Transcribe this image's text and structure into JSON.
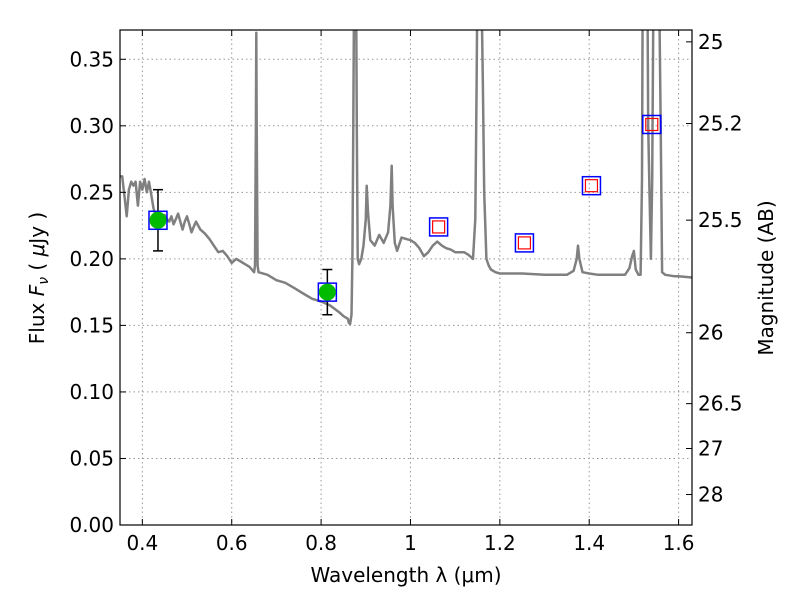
{
  "chart_data": {
    "type": "line",
    "xlabel": "Wavelength  λ (μm)",
    "ylabel": "Flux  F_ν ( μJy )",
    "ylabel_right": "Magnitude (AB)",
    "xlim": [
      0.35,
      1.63
    ],
    "ylim": [
      0.0,
      0.372
    ],
    "grid": true,
    "x_ticks": [
      0.4,
      0.6,
      0.8,
      1.0,
      1.2,
      1.4,
      1.6
    ],
    "x_tick_labels": [
      "0.4",
      "0.6",
      "0.8",
      "1",
      "1.2",
      "1.4",
      "1.6"
    ],
    "y_ticks": [
      0.0,
      0.05,
      0.1,
      0.15,
      0.2,
      0.25,
      0.3,
      0.35
    ],
    "y_tick_labels": [
      "0.00",
      "0.05",
      "0.10",
      "0.15",
      "0.20",
      "0.25",
      "0.30",
      "0.35"
    ],
    "right_ticks": [
      {
        "flux": 0.3631,
        "label": "25"
      },
      {
        "flux": 0.3017,
        "label": "25.2"
      },
      {
        "flux": 0.2291,
        "label": "25.5"
      },
      {
        "flux": 0.1445,
        "label": "26"
      },
      {
        "flux": 0.0912,
        "label": "26.5"
      },
      {
        "flux": 0.0575,
        "label": "27"
      },
      {
        "flux": 0.0229,
        "label": "28"
      }
    ],
    "colors": {
      "model": "#808080",
      "detection_fill": "#00bb00",
      "blue_box": "#0000ff",
      "red_box": "#ff0000",
      "grid": "#999999"
    },
    "model_sed": [
      [
        0.35,
        0.262
      ],
      [
        0.355,
        0.262
      ],
      [
        0.36,
        0.247
      ],
      [
        0.365,
        0.232
      ],
      [
        0.37,
        0.252
      ],
      [
        0.375,
        0.258
      ],
      [
        0.38,
        0.255
      ],
      [
        0.385,
        0.258
      ],
      [
        0.39,
        0.24
      ],
      [
        0.395,
        0.258
      ],
      [
        0.4,
        0.252
      ],
      [
        0.405,
        0.26
      ],
      [
        0.41,
        0.25
      ],
      [
        0.415,
        0.258
      ],
      [
        0.42,
        0.248
      ],
      [
        0.425,
        0.238
      ],
      [
        0.43,
        0.232
      ],
      [
        0.435,
        0.226
      ],
      [
        0.44,
        0.234
      ],
      [
        0.445,
        0.226
      ],
      [
        0.45,
        0.233
      ],
      [
        0.455,
        0.23
      ],
      [
        0.46,
        0.228
      ],
      [
        0.465,
        0.232
      ],
      [
        0.47,
        0.226
      ],
      [
        0.475,
        0.23
      ],
      [
        0.48,
        0.234
      ],
      [
        0.485,
        0.228
      ],
      [
        0.49,
        0.222
      ],
      [
        0.495,
        0.228
      ],
      [
        0.5,
        0.232
      ],
      [
        0.505,
        0.226
      ],
      [
        0.51,
        0.22
      ],
      [
        0.515,
        0.224
      ],
      [
        0.52,
        0.228
      ],
      [
        0.53,
        0.222
      ],
      [
        0.54,
        0.219
      ],
      [
        0.55,
        0.215
      ],
      [
        0.56,
        0.21
      ],
      [
        0.57,
        0.205
      ],
      [
        0.58,
        0.206
      ],
      [
        0.59,
        0.202
      ],
      [
        0.6,
        0.197
      ],
      [
        0.61,
        0.2
      ],
      [
        0.62,
        0.198
      ],
      [
        0.63,
        0.196
      ],
      [
        0.64,
        0.194
      ],
      [
        0.65,
        0.19
      ],
      [
        0.652,
        0.195
      ],
      [
        0.654,
        0.3
      ],
      [
        0.655,
        0.37
      ],
      [
        0.656,
        0.3
      ],
      [
        0.658,
        0.195
      ],
      [
        0.66,
        0.19
      ],
      [
        0.68,
        0.188
      ],
      [
        0.7,
        0.184
      ],
      [
        0.72,
        0.182
      ],
      [
        0.74,
        0.178
      ],
      [
        0.76,
        0.174
      ],
      [
        0.78,
        0.17
      ],
      [
        0.8,
        0.168
      ],
      [
        0.82,
        0.165
      ],
      [
        0.84,
        0.16
      ],
      [
        0.85,
        0.157
      ],
      [
        0.86,
        0.155
      ],
      [
        0.862,
        0.152
      ],
      [
        0.865,
        0.151
      ],
      [
        0.868,
        0.158
      ],
      [
        0.87,
        0.2
      ],
      [
        0.872,
        0.3
      ],
      [
        0.874,
        0.42
      ],
      [
        0.878,
        0.42
      ],
      [
        0.88,
        0.3
      ],
      [
        0.882,
        0.2
      ],
      [
        0.885,
        0.196
      ],
      [
        0.89,
        0.2
      ],
      [
        0.895,
        0.21
      ],
      [
        0.9,
        0.23
      ],
      [
        0.902,
        0.255
      ],
      [
        0.905,
        0.235
      ],
      [
        0.91,
        0.214
      ],
      [
        0.92,
        0.21
      ],
      [
        0.93,
        0.218
      ],
      [
        0.94,
        0.212
      ],
      [
        0.95,
        0.22
      ],
      [
        0.955,
        0.24
      ],
      [
        0.958,
        0.27
      ],
      [
        0.96,
        0.24
      ],
      [
        0.965,
        0.212
      ],
      [
        0.97,
        0.206
      ],
      [
        0.98,
        0.216
      ],
      [
        0.99,
        0.215
      ],
      [
        1.0,
        0.214
      ],
      [
        1.01,
        0.212
      ],
      [
        1.02,
        0.208
      ],
      [
        1.03,
        0.202
      ],
      [
        1.04,
        0.205
      ],
      [
        1.05,
        0.21
      ],
      [
        1.06,
        0.213
      ],
      [
        1.07,
        0.21
      ],
      [
        1.08,
        0.208
      ],
      [
        1.09,
        0.207
      ],
      [
        1.1,
        0.205
      ],
      [
        1.12,
        0.205
      ],
      [
        1.13,
        0.203
      ],
      [
        1.14,
        0.2
      ],
      [
        1.145,
        0.23
      ],
      [
        1.148,
        0.33
      ],
      [
        1.15,
        0.42
      ],
      [
        1.158,
        0.42
      ],
      [
        1.162,
        0.33
      ],
      [
        1.165,
        0.25
      ],
      [
        1.17,
        0.2
      ],
      [
        1.175,
        0.195
      ],
      [
        1.18,
        0.192
      ],
      [
        1.19,
        0.19
      ],
      [
        1.2,
        0.189
      ],
      [
        1.25,
        0.189
      ],
      [
        1.3,
        0.188
      ],
      [
        1.35,
        0.188
      ],
      [
        1.365,
        0.191
      ],
      [
        1.372,
        0.2
      ],
      [
        1.375,
        0.21
      ],
      [
        1.378,
        0.2
      ],
      [
        1.385,
        0.19
      ],
      [
        1.4,
        0.189
      ],
      [
        1.42,
        0.188
      ],
      [
        1.45,
        0.188
      ],
      [
        1.48,
        0.188
      ],
      [
        1.49,
        0.193
      ],
      [
        1.496,
        0.202
      ],
      [
        1.5,
        0.206
      ],
      [
        1.504,
        0.192
      ],
      [
        1.51,
        0.188
      ],
      [
        1.515,
        0.188
      ],
      [
        1.518,
        0.26
      ],
      [
        1.52,
        0.42
      ],
      [
        1.53,
        0.42
      ],
      [
        1.532,
        0.3
      ],
      [
        1.535,
        0.25
      ],
      [
        1.538,
        0.2
      ],
      [
        1.541,
        0.26
      ],
      [
        1.544,
        0.42
      ],
      [
        1.556,
        0.42
      ],
      [
        1.56,
        0.3
      ],
      [
        1.563,
        0.19
      ],
      [
        1.57,
        0.188
      ],
      [
        1.59,
        0.187
      ],
      [
        1.6,
        0.187
      ],
      [
        1.63,
        0.186
      ]
    ],
    "photometry": [
      {
        "x": 0.435,
        "flux": 0.229,
        "err": 0.023,
        "type": "detection"
      },
      {
        "x": 0.814,
        "flux": 0.175,
        "err": 0.017,
        "type": "detection"
      },
      {
        "x": 1.063,
        "flux": 0.224,
        "type": "upper-box"
      },
      {
        "x": 1.255,
        "flux": 0.212,
        "type": "upper-box"
      },
      {
        "x": 1.405,
        "flux": 0.255,
        "type": "upper-box"
      },
      {
        "x": 1.54,
        "flux": 0.301,
        "type": "upper-box"
      }
    ]
  }
}
